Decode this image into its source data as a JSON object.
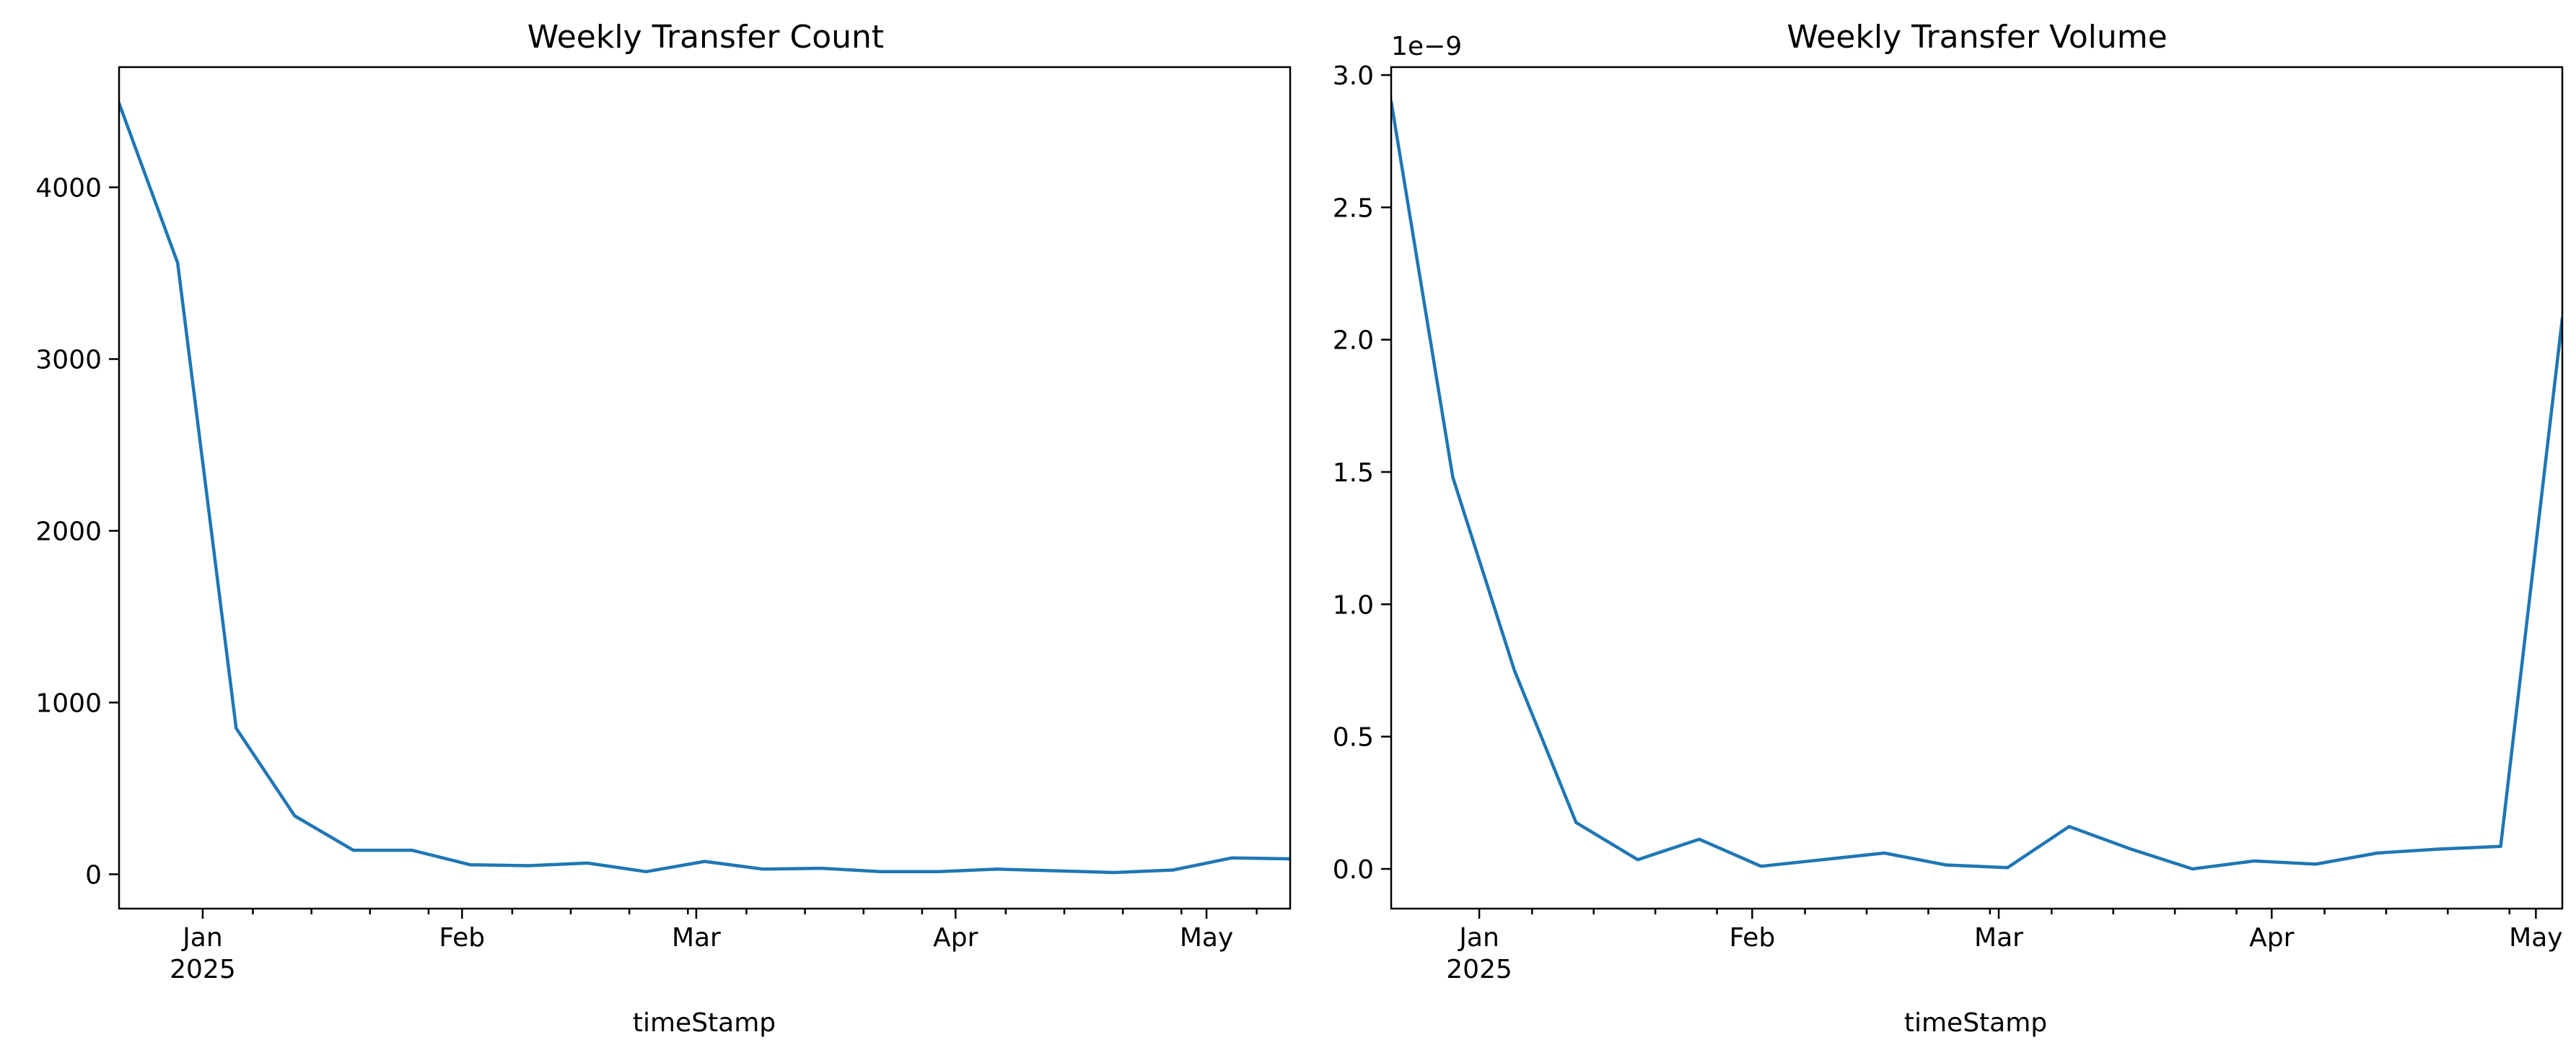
{
  "colors": {
    "series": "#1f77b4",
    "axes": "#000000",
    "background": "#ffffff"
  },
  "chart_data": [
    {
      "type": "line",
      "title": "Weekly Transfer Count",
      "xlabel": "timeStamp",
      "ylabel": "",
      "x_axis": "date",
      "xlim": [
        "2024-12-22",
        "2025-05-11"
      ],
      "ylim": [
        -200,
        4700
      ],
      "yticks": [
        0,
        1000,
        2000,
        3000,
        4000
      ],
      "ytick_labels": [
        "0",
        "1000",
        "2000",
        "3000",
        "4000"
      ],
      "xticks": [
        "2025-01-01",
        "2025-02-01",
        "2025-03-01",
        "2025-04-01",
        "2025-05-01"
      ],
      "xtick_labels": [
        "Jan\n2025",
        "Feb",
        "Mar",
        "Apr",
        "May"
      ],
      "y_offset_label": "",
      "grid": false,
      "x": [
        "2024-12-22",
        "2024-12-29",
        "2025-01-05",
        "2025-01-12",
        "2025-01-19",
        "2025-01-26",
        "2025-02-02",
        "2025-02-09",
        "2025-02-16",
        "2025-02-23",
        "2025-03-02",
        "2025-03-09",
        "2025-03-16",
        "2025-03-23",
        "2025-03-30",
        "2025-04-06",
        "2025-04-13",
        "2025-04-20",
        "2025-04-27",
        "2025-05-04",
        "2025-05-11"
      ],
      "series": [
        {
          "values": [
            4490,
            3560,
            850,
            340,
            140,
            140,
            55,
            50,
            65,
            15,
            75,
            30,
            35,
            15,
            15,
            30,
            20,
            10,
            25,
            95,
            90
          ]
        }
      ]
    },
    {
      "type": "line",
      "title": "Weekly Transfer Volume",
      "xlabel": "timeStamp",
      "ylabel": "",
      "x_axis": "date",
      "xlim": [
        "2024-12-22",
        "2025-05-04"
      ],
      "ylim": [
        -1.5e-10,
        3.03e-09
      ],
      "yticks": [
        0,
        5e-10,
        1e-09,
        1.5e-09,
        2e-09,
        2.5e-09,
        3e-09
      ],
      "ytick_labels": [
        "0.0",
        "0.5",
        "1.0",
        "1.5",
        "2.0",
        "2.5",
        "3.0"
      ],
      "xticks": [
        "2025-01-01",
        "2025-02-01",
        "2025-03-01",
        "2025-04-01",
        "2025-05-01"
      ],
      "xtick_labels": [
        "Jan\n2025",
        "Feb",
        "Mar",
        "Apr",
        "May"
      ],
      "y_offset_label": "1e−9",
      "grid": false,
      "x": [
        "2024-12-22",
        "2024-12-29",
        "2025-01-05",
        "2025-01-12",
        "2025-01-19",
        "2025-01-26",
        "2025-02-02",
        "2025-02-09",
        "2025-02-16",
        "2025-02-23",
        "2025-03-02",
        "2025-03-09",
        "2025-03-16",
        "2025-03-23",
        "2025-03-30",
        "2025-04-06",
        "2025-04-13",
        "2025-04-20",
        "2025-04-27",
        "2025-05-04"
      ],
      "series": [
        {
          "values": [
            2.9e-09,
            1.48e-09,
            7.5e-10,
            1.75e-10,
            3.5e-11,
            1.12e-10,
            1e-11,
            3.5e-11,
            6e-11,
            1.5e-11,
            5e-12,
            1.6e-10,
            7.5e-11,
            0,
            3e-11,
            1.8e-11,
            6e-11,
            7.5e-11,
            8.5e-11,
            2.08e-09
          ]
        }
      ]
    }
  ]
}
